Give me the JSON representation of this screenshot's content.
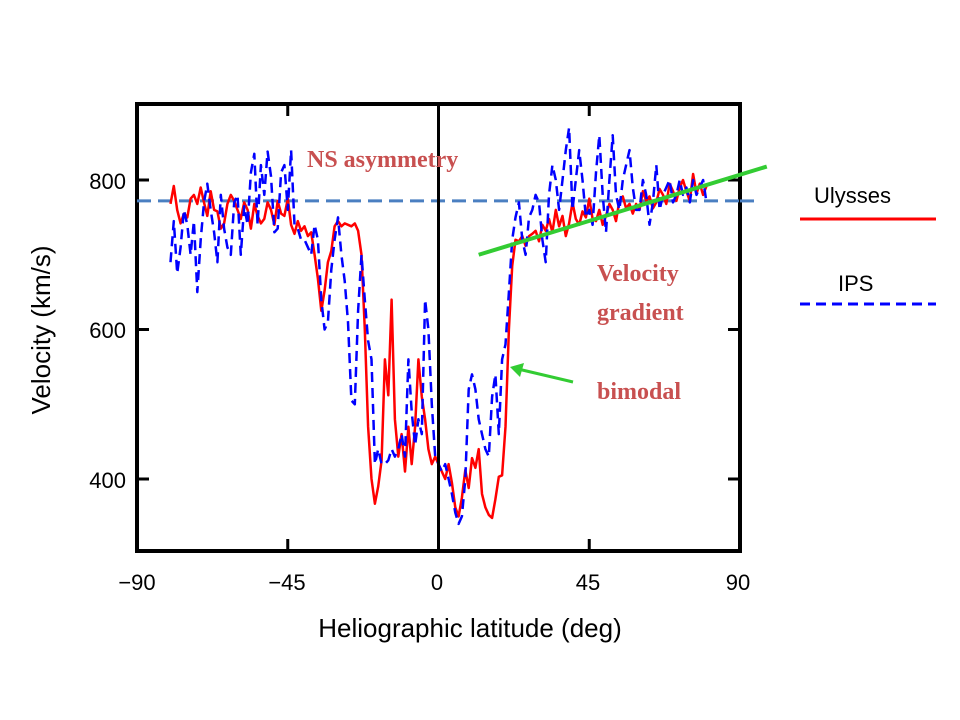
{
  "chart_data": {
    "type": "line",
    "xlabel": "Heliographic latitude (deg)",
    "ylabel": "Velocity (km/s)",
    "xlim": [
      -90,
      90
    ],
    "ylim": [
      300,
      910
    ],
    "x_ticks": [
      -90,
      -45,
      0,
      45,
      90
    ],
    "y_ticks": [
      400,
      600,
      800
    ],
    "grid": false,
    "legend_position": "right",
    "series": [
      {
        "name": "Ulysses",
        "color": "#ff0000",
        "style": "solid",
        "x": [
          -80,
          -79,
          -78,
          -77,
          -76,
          -75,
          -74,
          -73,
          -72,
          -71,
          -70,
          -69,
          -68,
          -67,
          -66,
          -65,
          -64,
          -63,
          -62,
          -61,
          -60,
          -59,
          -58,
          -57,
          -56,
          -55,
          -54,
          -53,
          -52,
          -51,
          -50,
          -49,
          -48,
          -47,
          -46,
          -45,
          -44,
          -43,
          -42,
          -41,
          -40,
          -39,
          -38,
          -37,
          -36,
          -35,
          -34,
          -33,
          -32,
          -31,
          -30,
          -29,
          -28,
          -27,
          -26,
          -25,
          -24,
          -23,
          -22,
          -21,
          -20,
          -19,
          -18,
          -17,
          -16,
          -15,
          -14,
          -13,
          -12,
          -11,
          -10,
          -9,
          -8,
          -7,
          -6,
          -5,
          -4,
          -3,
          -2,
          -1,
          0,
          1,
          2,
          3,
          4,
          5,
          6,
          7,
          8,
          9,
          10,
          11,
          12,
          13,
          14,
          15,
          16,
          17,
          18,
          19,
          20,
          21,
          22,
          23,
          24,
          25,
          26,
          27,
          28,
          29,
          30,
          31,
          32,
          33,
          34,
          35,
          36,
          37,
          38,
          39,
          40,
          41,
          42,
          43,
          44,
          45,
          46,
          47,
          48,
          49,
          50,
          51,
          52,
          53,
          54,
          55,
          56,
          57,
          58,
          59,
          60,
          61,
          62,
          63,
          64,
          65,
          66,
          67,
          68,
          69,
          70,
          71,
          72,
          73,
          74,
          75,
          76,
          77,
          78,
          79,
          80
        ],
        "y": [
          768,
          792,
          760,
          742,
          755,
          750,
          775,
          780,
          768,
          790,
          770,
          752,
          785,
          760,
          758,
          735,
          742,
          768,
          780,
          772,
          760,
          748,
          770,
          760,
          735,
          768,
          752,
          742,
          748,
          770,
          760,
          740,
          772,
          755,
          752,
          775,
          740,
          728,
          745,
          732,
          738,
          725,
          730,
          700,
          668,
          625,
          652,
          690,
          705,
          738,
          745,
          738,
          742,
          740,
          738,
          742,
          732,
          700,
          600,
          470,
          400,
          367,
          390,
          425,
          560,
          512,
          640,
          480,
          430,
          460,
          410,
          470,
          420,
          470,
          560,
          510,
          480,
          440,
          420,
          430,
          420,
          410,
          400,
          420,
          395,
          362,
          350,
          375,
          412,
          388,
          428,
          415,
          440,
          380,
          362,
          352,
          348,
          373,
          403,
          405,
          470,
          600,
          685,
          720,
          718,
          725,
          712,
          725,
          728,
          732,
          718,
          740,
          732,
          748,
          730,
          760,
          738,
          752,
          725,
          742,
          770,
          748,
          740,
          758,
          750,
          775,
          748,
          745,
          760,
          740,
          752,
          768,
          760,
          745,
          772,
          778,
          762,
          768,
          755,
          768,
          760,
          785,
          772,
          778,
          762,
          770,
          788,
          780,
          768,
          795,
          785,
          772,
          790,
          800,
          785,
          772,
          808,
          782,
          795,
          780,
          792
        ],
        "pixel_note_comment_removed": null
      },
      {
        "name": "IPS",
        "color": "#0000ff",
        "style": "dashed",
        "x": [
          -80,
          -79,
          -78,
          -77,
          -76,
          -75,
          -74,
          -73,
          -72,
          -71,
          -70,
          -69,
          -68,
          -67,
          -66,
          -65,
          -64,
          -63,
          -62,
          -61,
          -60,
          -59,
          -58,
          -57,
          -56,
          -55,
          -54,
          -53,
          -52,
          -51,
          -50,
          -49,
          -48,
          -47,
          -46,
          -45,
          -44,
          -43,
          -42,
          -41,
          -40,
          -39,
          -38,
          -37,
          -36,
          -35,
          -34,
          -33,
          -32,
          -31,
          -30,
          -29,
          -28,
          -27,
          -26,
          -25,
          -24,
          -23,
          -22,
          -21,
          -20,
          -19,
          -18,
          -17,
          -16,
          -15,
          -14,
          -13,
          -12,
          -11,
          -10,
          -9,
          -8,
          -7,
          -6,
          -5,
          -4,
          -3,
          -2,
          -1,
          0,
          1,
          2,
          3,
          4,
          5,
          6,
          7,
          8,
          9,
          10,
          11,
          12,
          13,
          14,
          15,
          16,
          17,
          18,
          19,
          20,
          21,
          22,
          23,
          24,
          25,
          26,
          27,
          28,
          29,
          30,
          31,
          32,
          33,
          34,
          35,
          36,
          37,
          38,
          39,
          40,
          41,
          42,
          43,
          44,
          45,
          46,
          47,
          48,
          49,
          50,
          51,
          52,
          53,
          54,
          55,
          56,
          57,
          58,
          59,
          60,
          61,
          62,
          63,
          64,
          65,
          66,
          67,
          68,
          69,
          70,
          71,
          72,
          73,
          74,
          75,
          76,
          77,
          78,
          79,
          80
        ],
        "y": [
          690,
          745,
          675,
          710,
          760,
          740,
          700,
          745,
          650,
          720,
          770,
          795,
          760,
          730,
          690,
          780,
          735,
          710,
          700,
          770,
          780,
          700,
          765,
          740,
          810,
          835,
          740,
          820,
          780,
          838,
          805,
          730,
          735,
          810,
          820,
          760,
          840,
          740,
          735,
          720,
          720,
          710,
          700,
          740,
          720,
          640,
          600,
          610,
          680,
          720,
          750,
          700,
          665,
          610,
          505,
          500,
          625,
          700,
          640,
          585,
          560,
          420,
          440,
          420,
          420,
          425,
          440,
          430,
          440,
          460,
          430,
          560,
          490,
          445,
          480,
          460,
          640,
          600,
          500,
          430,
          420,
          410,
          420,
          400,
          380,
          355,
          340,
          350,
          400,
          520,
          540,
          520,
          480,
          460,
          440,
          430,
          510,
          540,
          460,
          560,
          580,
          650,
          720,
          750,
          770,
          720,
          700,
          750,
          760,
          780,
          770,
          720,
          690,
          780,
          820,
          800,
          760,
          800,
          840,
          870,
          760,
          800,
          840,
          800,
          750,
          760,
          740,
          810,
          860,
          780,
          730,
          800,
          860,
          780,
          760,
          800,
          820,
          840,
          790,
          760,
          760,
          800,
          780,
          740,
          770,
          820,
          760,
          780,
          790,
          800,
          770,
          780,
          800,
          780,
          790,
          770,
          800,
          780,
          790,
          800,
          770
        ],
        "pixel_note_comment_removed": null
      }
    ],
    "reference_line": {
      "y": 772,
      "color": "#4a7fc1",
      "style": "dashed"
    },
    "trend_line": {
      "x": [
        12,
        98
      ],
      "y": [
        700,
        818
      ],
      "color": "#33cc33"
    },
    "annotations": [
      {
        "text": "NS asymmetry",
        "color": "#c85050"
      },
      {
        "text": "Velocity",
        "color": "#c85050"
      },
      {
        "text": "gradient",
        "color": "#c85050"
      },
      {
        "text": "bimodal",
        "color": "#c85050"
      }
    ]
  },
  "legend": {
    "items": [
      {
        "label": "Ulysses",
        "color": "#ff0000",
        "style": "solid"
      },
      {
        "label": "IPS",
        "color": "#0000ff",
        "style": "dashed"
      }
    ]
  },
  "labels": {
    "xlabel": "Heliographic latitude (deg)",
    "ylabel": "Velocity (km/s)",
    "x_ticks": [
      "−90",
      "−45",
      "0",
      "45",
      "90"
    ],
    "y_ticks": [
      "400",
      "600",
      "800"
    ],
    "annot_ns": "NS asymmetry",
    "annot_velocity": "Velocity",
    "annot_gradient": "gradient",
    "annot_bimodal": "bimodal"
  }
}
